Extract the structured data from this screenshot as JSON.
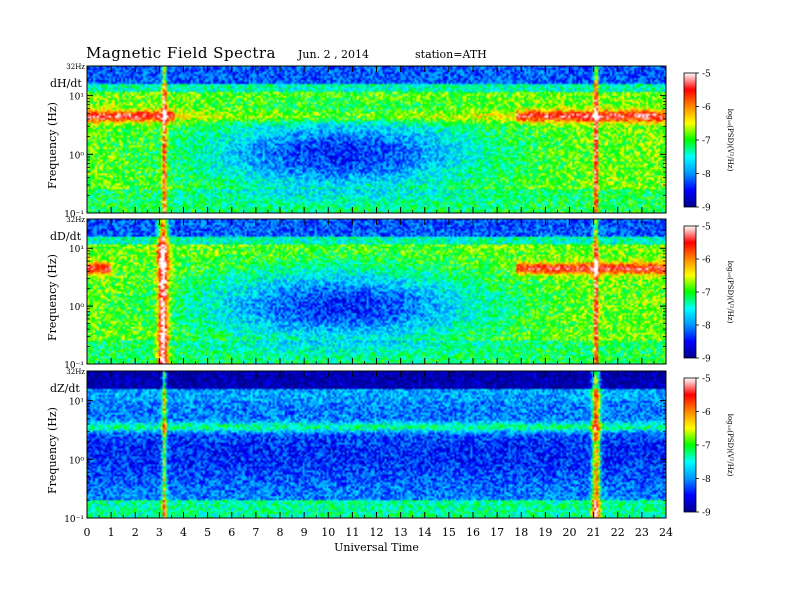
{
  "header": {
    "title": "Magnetic  Field  Spectra",
    "date": "Jun. 2 , 2014",
    "station": "station=ATH"
  },
  "chart_data": {
    "type": "heatmap",
    "xlabel": "Universal Time",
    "x_ticks": [
      "0",
      "1",
      "2",
      "3",
      "4",
      "5",
      "6",
      "7",
      "8",
      "9",
      "10",
      "11",
      "12",
      "13",
      "14",
      "15",
      "16",
      "17",
      "18",
      "19",
      "20",
      "21",
      "22",
      "23",
      "24"
    ],
    "xlim": [
      0,
      24
    ],
    "ylabel": "Frequency (Hz)",
    "y_scale": "log",
    "ylim_hz": [
      0.1,
      32
    ],
    "y_tick_labels": [
      "10⁻¹",
      "10⁰",
      "10¹",
      "32Hz"
    ],
    "colorbar": {
      "label": "log₁₀(PSD)(V²/Hz)",
      "ticks": [
        "-5",
        "-6",
        "-7",
        "-8",
        "-9"
      ],
      "range": [
        -9,
        -5
      ],
      "colors": [
        "#00008b",
        "#0000ff",
        "#0096ff",
        "#00ffff",
        "#00ff00",
        "#ffff00",
        "#ff8800",
        "#ff0000",
        "#ffffff"
      ]
    },
    "panels": [
      {
        "component": "dH/dt",
        "features": [
          {
            "description": "strong narrowband emission near 4-5 Hz",
            "t_start": 0,
            "t_end": 3.6
          },
          {
            "description": "strong narrowband emission near 4-5 Hz",
            "t_start": 17.8,
            "t_end": 24
          },
          {
            "description": "broadband burst",
            "t": 3.2
          },
          {
            "description": "broadband burst",
            "t": 21.1
          }
        ]
      },
      {
        "component": "dD/dt",
        "features": [
          {
            "description": "strong narrowband emission near 4-5 Hz",
            "t_start": 0,
            "t_end": 1.0
          },
          {
            "description": "intense broadband burst",
            "t_start": 2.9,
            "t_end": 3.4
          },
          {
            "description": "narrowband emission near 4-5 Hz",
            "t_start": 17.8,
            "t_end": 24
          },
          {
            "description": "broadband burst",
            "t": 21.1
          }
        ]
      },
      {
        "component": "dZ/dt",
        "features": [
          {
            "description": "weak emission band near 3-4 Hz",
            "t_start": 0,
            "t_end": 24
          },
          {
            "description": "broadband burst",
            "t": 3.2
          },
          {
            "description": "intense broadband burst",
            "t_start": 20.9,
            "t_end": 21.3
          }
        ]
      }
    ]
  }
}
